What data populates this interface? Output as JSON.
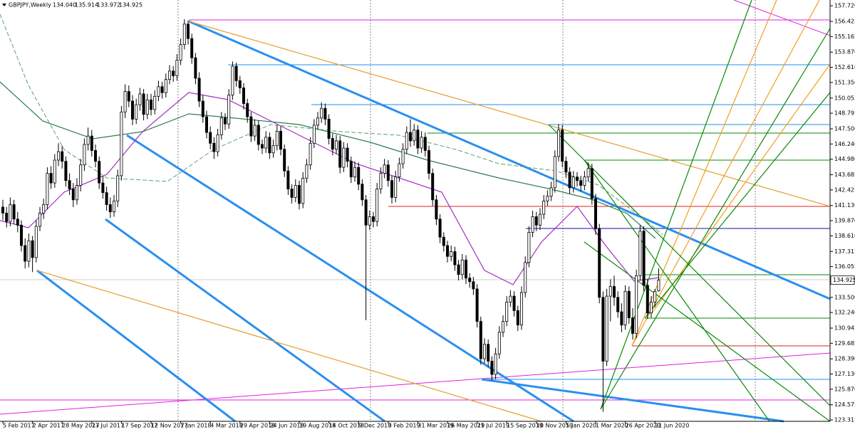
{
  "chart_data": {
    "type": "candlestick",
    "header": {
      "symbol": "GBPJPY,Weekly",
      "open": "134.040",
      "high": "135.914",
      "low": "133.972",
      "close": "134.925"
    },
    "categories": [
      "5 Feb 2017",
      null,
      null,
      null,
      null,
      null,
      null,
      null,
      "2 Apr 2017",
      null,
      null,
      null,
      null,
      null,
      null,
      null,
      "28 May 2017",
      null,
      null,
      null,
      null,
      null,
      null,
      null,
      "23 Jul 2017",
      null,
      null,
      null,
      null,
      null,
      null,
      null,
      "17 Sep 2017",
      null,
      null,
      null,
      null,
      null,
      null,
      null,
      "12 Nov 2017",
      null,
      null,
      null,
      null,
      null,
      null,
      null,
      "7 Jan 2018",
      null,
      null,
      null,
      null,
      null,
      null,
      null,
      "4 Mar 2018",
      null,
      null,
      null,
      null,
      null,
      null,
      null,
      "29 Apr 2018",
      null,
      null,
      null,
      null,
      null,
      null,
      null,
      "24 Jun 2018",
      null,
      null,
      null,
      null,
      null,
      null,
      null,
      "19 Aug 2018",
      null,
      null,
      null,
      null,
      null,
      null,
      null,
      "14 Oct 2018",
      null,
      null,
      null,
      null,
      null,
      null,
      null,
      "9 Dec 2018",
      null,
      null,
      null,
      null,
      null,
      null,
      null,
      "3 Feb 2019",
      null,
      null,
      null,
      null,
      null,
      null,
      null,
      "31 Mar 2019",
      null,
      null,
      null,
      null,
      null,
      null,
      null,
      "26 May 2019",
      null,
      null,
      null,
      null,
      null,
      null,
      null,
      "21 Jul 2019",
      null,
      null,
      null,
      null,
      null,
      null,
      null,
      "15 Sep 2019",
      null,
      null,
      null,
      null,
      null,
      null,
      null,
      "10 Nov 2019",
      null,
      null,
      null,
      null,
      null,
      null,
      null,
      "5 Jan 2020",
      null,
      null,
      null,
      null,
      null,
      null,
      null,
      "1 Mar 2020",
      null,
      null,
      null,
      null,
      null,
      null,
      null,
      "26 Apr 2020",
      null,
      null,
      null,
      null,
      null,
      null,
      null,
      "21 Jun 2020",
      null
    ],
    "ohlc": [
      [
        141.0,
        141.6,
        139.9,
        140.5
      ],
      [
        140.5,
        141.0,
        139.3,
        139.8
      ],
      [
        139.8,
        141.8,
        139.4,
        141.2
      ],
      [
        141.2,
        141.6,
        139.6,
        140.0
      ],
      [
        140.0,
        140.6,
        138.9,
        139.5
      ],
      [
        139.5,
        139.9,
        137.3,
        137.8
      ],
      [
        137.8,
        138.4,
        135.9,
        136.5
      ],
      [
        136.5,
        138.8,
        136.0,
        138.2
      ],
      [
        138.2,
        138.6,
        135.6,
        136.8
      ],
      [
        136.8,
        139.9,
        136.4,
        139.4
      ],
      [
        139.4,
        141.0,
        139.0,
        140.5
      ],
      [
        140.5,
        141.7,
        140.0,
        141.2
      ],
      [
        141.2,
        144.3,
        140.8,
        143.8
      ],
      [
        143.8,
        144.4,
        142.5,
        143.0
      ],
      [
        143.0,
        145.4,
        142.6,
        144.9
      ],
      [
        144.9,
        146.3,
        144.4,
        145.6
      ],
      [
        145.6,
        146.1,
        144.2,
        144.8
      ],
      [
        144.8,
        145.2,
        142.7,
        143.2
      ],
      [
        143.2,
        143.8,
        142.0,
        142.5
      ],
      [
        142.5,
        143.0,
        141.0,
        141.6
      ],
      [
        141.6,
        143.4,
        141.2,
        142.8
      ],
      [
        142.8,
        145.0,
        142.3,
        144.5
      ],
      [
        144.5,
        146.7,
        144.0,
        146.2
      ],
      [
        146.2,
        147.6,
        145.7,
        146.9
      ],
      [
        146.9,
        147.4,
        145.2,
        145.7
      ],
      [
        145.7,
        146.2,
        144.3,
        144.8
      ],
      [
        144.8,
        145.2,
        142.5,
        143.0
      ],
      [
        143.0,
        143.6,
        141.7,
        142.2
      ],
      [
        142.2,
        142.7,
        140.7,
        141.2
      ],
      [
        141.2,
        141.8,
        140.1,
        140.6
      ],
      [
        140.6,
        142.0,
        140.2,
        141.5
      ],
      [
        141.5,
        144.1,
        141.0,
        143.6
      ],
      [
        143.6,
        149.4,
        143.2,
        148.9
      ],
      [
        148.9,
        151.2,
        148.4,
        150.6
      ],
      [
        150.6,
        151.1,
        149.3,
        149.8
      ],
      [
        149.8,
        150.3,
        147.8,
        148.3
      ],
      [
        148.3,
        150.0,
        147.9,
        149.5
      ],
      [
        149.5,
        150.9,
        149.0,
        150.4
      ],
      [
        150.4,
        150.8,
        148.2,
        148.7
      ],
      [
        148.7,
        150.4,
        148.3,
        149.9
      ],
      [
        149.9,
        150.4,
        148.6,
        149.1
      ],
      [
        149.1,
        150.7,
        148.7,
        150.2
      ],
      [
        150.2,
        151.5,
        149.8,
        151.0
      ],
      [
        151.0,
        151.4,
        150.0,
        150.5
      ],
      [
        150.5,
        152.1,
        150.1,
        151.6
      ],
      [
        151.6,
        152.8,
        151.2,
        152.3
      ],
      [
        152.3,
        152.7,
        151.4,
        151.9
      ],
      [
        151.9,
        153.7,
        151.5,
        153.2
      ],
      [
        153.2,
        155.0,
        152.8,
        154.5
      ],
      [
        154.5,
        156.6,
        154.1,
        156.2
      ],
      [
        156.2,
        156.5,
        154.5,
        155.0
      ],
      [
        155.0,
        155.4,
        152.9,
        153.4
      ],
      [
        153.4,
        153.8,
        151.2,
        151.7
      ],
      [
        151.7,
        152.2,
        149.3,
        149.8
      ],
      [
        149.8,
        150.3,
        148.0,
        148.5
      ],
      [
        148.5,
        149.0,
        146.7,
        147.2
      ],
      [
        147.2,
        147.7,
        145.8,
        146.3
      ],
      [
        146.3,
        146.8,
        145.0,
        145.6
      ],
      [
        145.6,
        147.5,
        145.2,
        147.0
      ],
      [
        147.0,
        148.9,
        146.6,
        148.4
      ],
      [
        148.4,
        148.8,
        147.4,
        147.9
      ],
      [
        147.9,
        150.8,
        147.5,
        150.3
      ],
      [
        150.3,
        153.1,
        149.9,
        152.7
      ],
      [
        152.7,
        153.0,
        151.0,
        151.5
      ],
      [
        151.5,
        151.9,
        150.4,
        150.9
      ],
      [
        150.9,
        151.3,
        149.1,
        149.6
      ],
      [
        149.6,
        150.0,
        148.0,
        148.5
      ],
      [
        148.5,
        148.9,
        146.4,
        146.9
      ],
      [
        146.9,
        148.3,
        146.5,
        147.8
      ],
      [
        147.8,
        148.2,
        145.7,
        146.2
      ],
      [
        146.2,
        146.6,
        145.4,
        145.9
      ],
      [
        145.9,
        147.3,
        145.5,
        146.8
      ],
      [
        146.8,
        147.2,
        145.0,
        145.5
      ],
      [
        145.5,
        146.6,
        145.1,
        146.1
      ],
      [
        146.1,
        147.8,
        145.7,
        147.3
      ],
      [
        147.3,
        147.7,
        145.3,
        145.8
      ],
      [
        145.8,
        146.2,
        143.5,
        144.0
      ],
      [
        144.0,
        144.4,
        142.0,
        142.5
      ],
      [
        142.5,
        142.9,
        141.3,
        141.8
      ],
      [
        141.8,
        143.3,
        141.4,
        142.8
      ],
      [
        142.8,
        143.2,
        140.8,
        141.3
      ],
      [
        141.3,
        143.9,
        140.9,
        143.4
      ],
      [
        143.4,
        145.0,
        143.0,
        144.5
      ],
      [
        144.5,
        146.8,
        144.1,
        146.3
      ],
      [
        146.3,
        148.3,
        145.9,
        147.8
      ],
      [
        147.8,
        148.9,
        147.4,
        148.4
      ],
      [
        148.4,
        149.7,
        148.0,
        149.2
      ],
      [
        149.2,
        149.6,
        147.8,
        148.3
      ],
      [
        148.3,
        148.7,
        146.2,
        146.7
      ],
      [
        146.7,
        147.1,
        145.3,
        145.8
      ],
      [
        145.8,
        147.0,
        145.4,
        146.5
      ],
      [
        146.5,
        146.9,
        143.8,
        144.3
      ],
      [
        144.3,
        146.4,
        143.9,
        145.9
      ],
      [
        145.9,
        146.3,
        144.3,
        144.8
      ],
      [
        144.8,
        145.2,
        143.0,
        143.5
      ],
      [
        143.5,
        144.8,
        143.1,
        144.3
      ],
      [
        144.3,
        144.7,
        142.4,
        142.9
      ],
      [
        142.9,
        143.3,
        141.1,
        141.6
      ],
      [
        141.6,
        142.0,
        131.6,
        139.5
      ],
      [
        139.5,
        140.7,
        139.1,
        140.2
      ],
      [
        140.2,
        140.6,
        139.3,
        139.8
      ],
      [
        139.8,
        143.0,
        139.4,
        142.5
      ],
      [
        142.5,
        144.3,
        142.1,
        143.8
      ],
      [
        143.8,
        145.0,
        143.4,
        144.5
      ],
      [
        144.5,
        144.9,
        142.7,
        143.2
      ],
      [
        143.2,
        143.6,
        141.3,
        141.8
      ],
      [
        141.8,
        144.0,
        141.4,
        143.5
      ],
      [
        143.5,
        145.1,
        143.1,
        144.6
      ],
      [
        144.6,
        146.3,
        144.2,
        145.8
      ],
      [
        145.8,
        147.7,
        145.4,
        147.2
      ],
      [
        147.2,
        148.3,
        146.0,
        146.5
      ],
      [
        146.5,
        147.9,
        146.1,
        147.4
      ],
      [
        147.4,
        147.8,
        145.4,
        145.9
      ],
      [
        145.9,
        147.3,
        145.5,
        146.8
      ],
      [
        146.8,
        147.2,
        145.2,
        145.7
      ],
      [
        145.7,
        146.1,
        143.3,
        143.8
      ],
      [
        143.8,
        144.2,
        141.1,
        141.6
      ],
      [
        141.6,
        142.0,
        139.5,
        140.0
      ],
      [
        140.0,
        140.4,
        138.0,
        138.5
      ],
      [
        138.5,
        138.9,
        137.3,
        137.8
      ],
      [
        137.8,
        138.2,
        136.4,
        136.9
      ],
      [
        136.9,
        137.8,
        136.5,
        137.3
      ],
      [
        137.3,
        137.7,
        135.7,
        136.2
      ],
      [
        136.2,
        136.6,
        134.9,
        135.4
      ],
      [
        135.4,
        137.1,
        135.0,
        136.6
      ],
      [
        136.6,
        137.0,
        134.6,
        135.1
      ],
      [
        135.1,
        135.5,
        134.3,
        134.8
      ],
      [
        134.8,
        135.2,
        133.7,
        134.2
      ],
      [
        134.2,
        134.6,
        131.0,
        131.5
      ],
      [
        131.5,
        131.9,
        127.9,
        128.4
      ],
      [
        128.4,
        130.1,
        128.0,
        129.6
      ],
      [
        129.6,
        130.0,
        127.7,
        128.2
      ],
      [
        128.2,
        128.6,
        126.6,
        127.1
      ],
      [
        127.1,
        129.3,
        126.7,
        128.8
      ],
      [
        128.8,
        131.1,
        128.4,
        130.6
      ],
      [
        130.6,
        132.0,
        130.2,
        131.5
      ],
      [
        131.5,
        133.6,
        131.1,
        133.1
      ],
      [
        133.1,
        134.1,
        132.7,
        133.6
      ],
      [
        133.6,
        134.0,
        131.9,
        132.4
      ],
      [
        132.4,
        132.8,
        130.7,
        131.2
      ],
      [
        131.2,
        134.4,
        130.8,
        133.9
      ],
      [
        133.9,
        136.9,
        133.5,
        136.4
      ],
      [
        136.4,
        139.4,
        136.0,
        138.9
      ],
      [
        138.9,
        140.7,
        138.5,
        140.2
      ],
      [
        140.2,
        140.6,
        139.0,
        139.5
      ],
      [
        139.5,
        140.9,
        139.1,
        140.4
      ],
      [
        140.4,
        142.0,
        140.0,
        141.5
      ],
      [
        141.5,
        142.4,
        141.1,
        141.9
      ],
      [
        141.9,
        143.1,
        141.5,
        142.6
      ],
      [
        142.6,
        145.7,
        142.2,
        145.2
      ],
      [
        145.2,
        147.9,
        144.8,
        147.4
      ],
      [
        147.4,
        147.8,
        144.3,
        144.8
      ],
      [
        144.8,
        145.2,
        143.4,
        143.9
      ],
      [
        143.9,
        144.3,
        142.1,
        142.6
      ],
      [
        142.6,
        144.0,
        142.2,
        143.5
      ],
      [
        143.5,
        143.9,
        142.7,
        143.2
      ],
      [
        143.2,
        143.6,
        142.3,
        142.8
      ],
      [
        142.8,
        144.0,
        142.4,
        143.5
      ],
      [
        143.5,
        144.7,
        143.1,
        144.2
      ],
      [
        144.2,
        144.6,
        141.2,
        141.7
      ],
      [
        141.7,
        142.1,
        138.7,
        139.2
      ],
      [
        139.2,
        139.6,
        133.0,
        133.5
      ],
      [
        133.5,
        134.0,
        124.0,
        128.2
      ],
      [
        128.2,
        134.2,
        127.8,
        133.6
      ],
      [
        133.6,
        135.0,
        131.5,
        134.4
      ],
      [
        134.4,
        135.3,
        132.8,
        133.5
      ],
      [
        133.5,
        134.0,
        131.8,
        132.3
      ],
      [
        132.3,
        133.0,
        130.6,
        131.2
      ],
      [
        131.2,
        134.5,
        130.8,
        134.0
      ],
      [
        134.0,
        134.4,
        131.3,
        131.8
      ],
      [
        131.8,
        132.6,
        130.0,
        130.5
      ],
      [
        130.5,
        135.8,
        130.1,
        135.3
      ],
      [
        135.3,
        139.5,
        134.9,
        139.0
      ],
      [
        139.0,
        139.4,
        134.0,
        134.5
      ],
      [
        134.5,
        135.0,
        131.7,
        132.2
      ],
      [
        132.2,
        133.6,
        131.8,
        133.1
      ],
      [
        133.1,
        134.2,
        132.7,
        134.0
      ],
      [
        134.04,
        135.914,
        133.972,
        134.925
      ]
    ],
    "last_price": 134.925,
    "ylim": [
      123.2,
      158.2
    ],
    "yticks": [
      {
        "value": 157.72,
        "label": "157.720"
      },
      {
        "value": 156.425,
        "label": "156.425"
      },
      {
        "value": 155.165,
        "label": "155.165"
      },
      {
        "value": 153.87,
        "label": "153.870"
      },
      {
        "value": 152.61,
        "label": "152.610"
      },
      {
        "value": 151.35,
        "label": "151.350"
      },
      {
        "value": 150.055,
        "label": "150.055"
      },
      {
        "value": 148.795,
        "label": "148.795"
      },
      {
        "value": 147.5,
        "label": "147.500"
      },
      {
        "value": 146.24,
        "label": "146.240"
      },
      {
        "value": 144.98,
        "label": "144.980"
      },
      {
        "value": 143.685,
        "label": "143.685"
      },
      {
        "value": 142.425,
        "label": "142.425"
      },
      {
        "value": 141.13,
        "label": "141.130"
      },
      {
        "value": 139.87,
        "label": "139.870"
      },
      {
        "value": 138.61,
        "label": "138.610"
      },
      {
        "value": 137.315,
        "label": "137.315"
      },
      {
        "value": 136.055,
        "label": "136.055"
      },
      {
        "value": 133.5,
        "label": "133.500"
      },
      {
        "value": 132.24,
        "label": "132.240"
      },
      {
        "value": 130.945,
        "label": "130.945"
      },
      {
        "value": 129.685,
        "label": "129.685"
      },
      {
        "value": 128.39,
        "label": "128.390"
      },
      {
        "value": 127.13,
        "label": "127.130"
      },
      {
        "value": 125.87,
        "label": "125.870"
      },
      {
        "value": 124.575,
        "label": "124.575"
      },
      {
        "value": 123.315,
        "label": "123.315"
      }
    ],
    "up_color": "#ffffff",
    "down_color": "#000000"
  }
}
